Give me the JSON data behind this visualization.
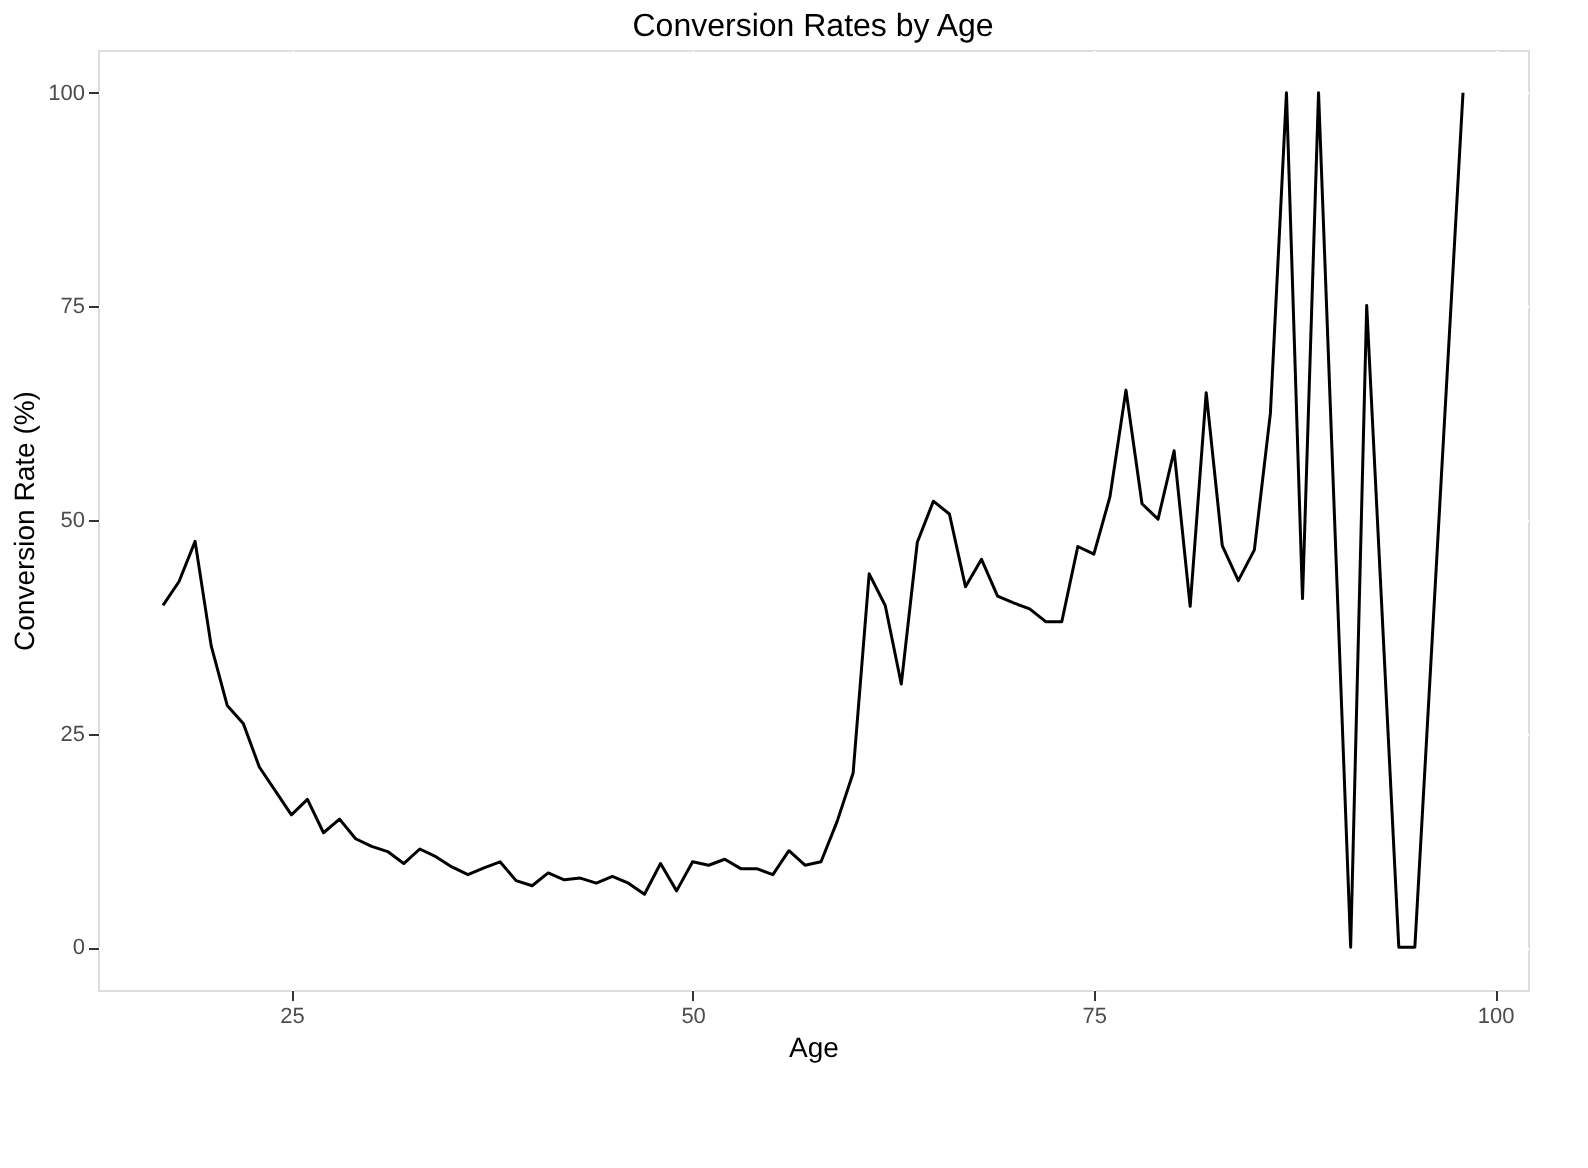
{
  "chart_data": {
    "type": "line",
    "title": "Conversion Rates by Age",
    "xlabel": "Age",
    "ylabel": "Conversion Rate (%)",
    "x": [
      17,
      18,
      19,
      20,
      21,
      22,
      23,
      24,
      25,
      26,
      27,
      28,
      29,
      30,
      31,
      32,
      33,
      34,
      35,
      36,
      37,
      38,
      39,
      40,
      41,
      42,
      43,
      44,
      45,
      46,
      47,
      48,
      49,
      50,
      51,
      52,
      53,
      54,
      55,
      56,
      57,
      58,
      59,
      60,
      61,
      62,
      63,
      64,
      65,
      66,
      67,
      68,
      69,
      70,
      71,
      72,
      73,
      74,
      75,
      76,
      77,
      78,
      79,
      80,
      81,
      82,
      83,
      84,
      85,
      86,
      87,
      88,
      89,
      91,
      92,
      94,
      95,
      98
    ],
    "series": [
      {
        "color": "#000000",
        "values": [
          40.0,
          42.8,
          47.5,
          35.3,
          28.3,
          26.2,
          21.1,
          18.3,
          15.5,
          17.3,
          13.4,
          15.0,
          12.7,
          11.8,
          11.2,
          9.8,
          11.5,
          10.6,
          9.4,
          8.5,
          9.3,
          10.0,
          7.8,
          7.2,
          8.7,
          7.9,
          8.1,
          7.5,
          8.3,
          7.5,
          6.2,
          9.8,
          6.6,
          10.0,
          9.6,
          10.3,
          9.2,
          9.2,
          8.5,
          11.3,
          9.6,
          10.0,
          14.7,
          20.4,
          43.7,
          40.0,
          30.8,
          47.4,
          52.2,
          50.7,
          42.2,
          45.4,
          41.1,
          40.3,
          39.6,
          38.1,
          38.1,
          46.9,
          46.0,
          52.7,
          65.2,
          51.9,
          50.1,
          58.1,
          39.9,
          64.9,
          47.0,
          42.9,
          46.5,
          62.5,
          100,
          40.8,
          100,
          0,
          75.1,
          0,
          0,
          100
        ]
      }
    ],
    "xlim": [
      12.95,
      102.05
    ],
    "ylim": [
      -5,
      105
    ],
    "xticks": [
      25,
      50,
      75,
      100
    ],
    "yticks": [
      0,
      25,
      50,
      75,
      100
    ],
    "grid": true,
    "line_style": "solid",
    "marker": "none"
  }
}
